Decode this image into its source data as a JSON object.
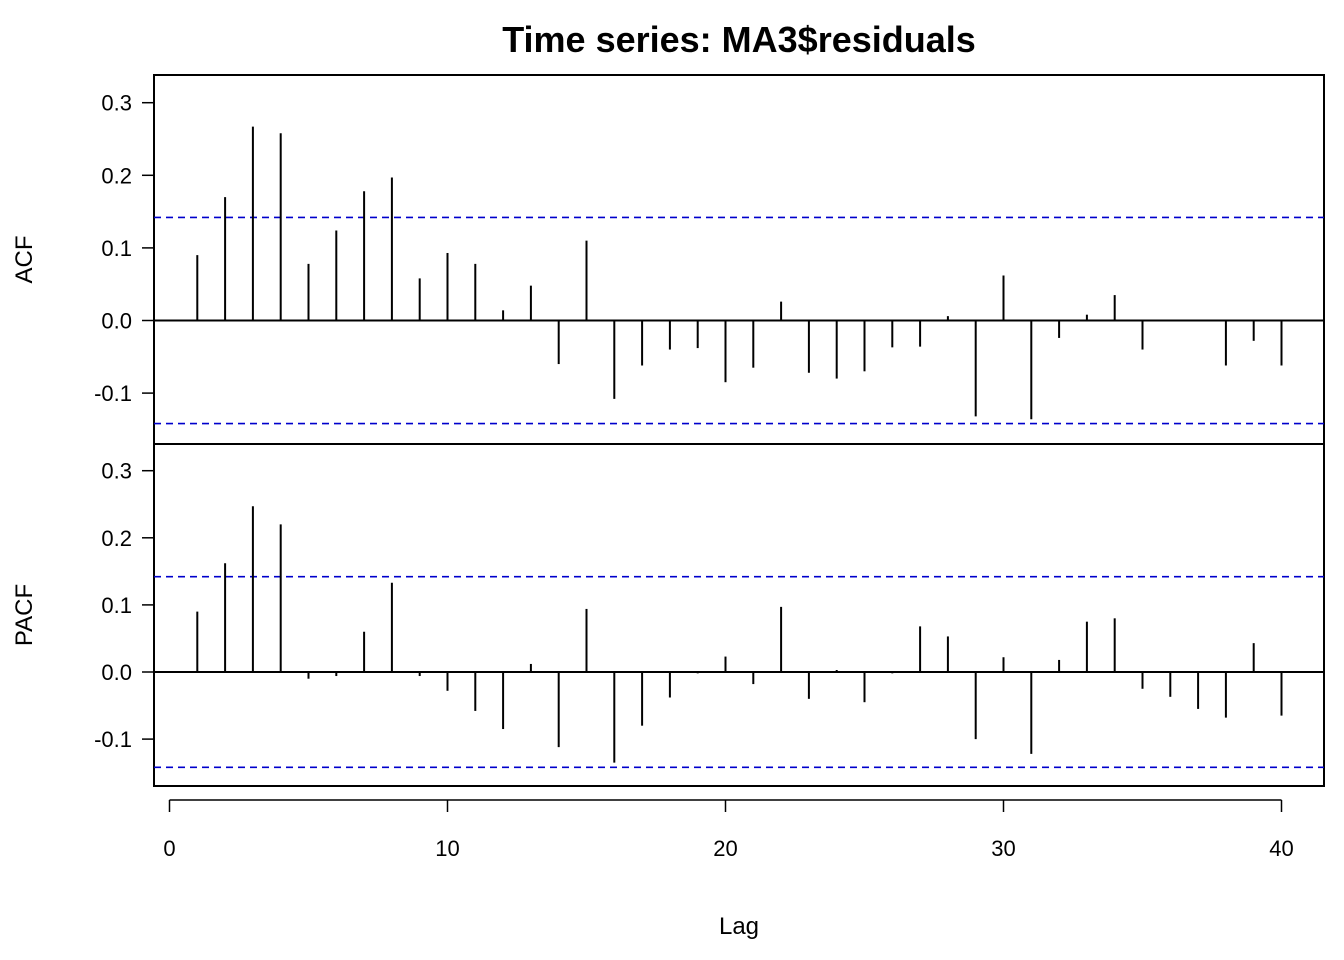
{
  "chart_data": {
    "type": "bar",
    "title": "Time series:  MA3$residuals",
    "xlabel": "Lag",
    "x_ticks": [
      0,
      10,
      20,
      30,
      40
    ],
    "xlim": [
      0,
      40
    ],
    "confidence_bound": 0.142,
    "colors": {
      "bars": "#000000",
      "bounds": "#0000cc",
      "frame": "#000000"
    },
    "panels": [
      {
        "ylabel": "ACF",
        "ylim": [
          -0.17,
          0.335
        ],
        "y_ticks": [
          "-0.1",
          "0.0",
          "0.1",
          "0.2",
          "0.3"
        ],
        "lags": [
          1,
          2,
          3,
          4,
          5,
          6,
          7,
          8,
          9,
          10,
          11,
          12,
          13,
          14,
          15,
          16,
          17,
          18,
          19,
          20,
          21,
          22,
          23,
          24,
          25,
          26,
          27,
          28,
          29,
          30,
          31,
          32,
          33,
          34,
          35,
          36,
          37,
          38,
          39,
          40
        ],
        "values": [
          0.09,
          0.17,
          0.267,
          0.258,
          0.078,
          0.124,
          0.178,
          0.197,
          0.058,
          0.093,
          0.078,
          0.014,
          0.048,
          -0.06,
          0.11,
          -0.108,
          -0.062,
          -0.04,
          -0.038,
          -0.085,
          -0.065,
          0.026,
          -0.072,
          -0.08,
          -0.07,
          -0.037,
          -0.036,
          0.006,
          -0.132,
          0.062,
          -0.136,
          -0.024,
          0.008,
          0.035,
          -0.04,
          0.001,
          0.0,
          -0.062,
          -0.028,
          -0.062
        ]
      },
      {
        "ylabel": "PACF",
        "ylim": [
          -0.17,
          0.335
        ],
        "y_ticks": [
          "-0.1",
          "0.0",
          "0.1",
          "0.2",
          "0.3"
        ],
        "lags": [
          1,
          2,
          3,
          4,
          5,
          6,
          7,
          8,
          9,
          10,
          11,
          12,
          13,
          14,
          15,
          16,
          17,
          18,
          19,
          20,
          21,
          22,
          23,
          24,
          25,
          26,
          27,
          28,
          29,
          30,
          31,
          32,
          33,
          34,
          35,
          36,
          37,
          38,
          39,
          40
        ],
        "values": [
          0.09,
          0.162,
          0.247,
          0.22,
          -0.01,
          -0.006,
          0.06,
          0.133,
          -0.006,
          -0.028,
          -0.058,
          -0.085,
          0.012,
          -0.112,
          0.094,
          -0.135,
          -0.08,
          -0.038,
          -0.002,
          0.023,
          -0.018,
          0.097,
          -0.04,
          0.003,
          -0.045,
          -0.002,
          0.068,
          0.053,
          -0.1,
          0.022,
          -0.122,
          0.018,
          0.075,
          0.08,
          -0.025,
          -0.037,
          -0.055,
          -0.068,
          0.043,
          -0.065
        ]
      }
    ]
  }
}
